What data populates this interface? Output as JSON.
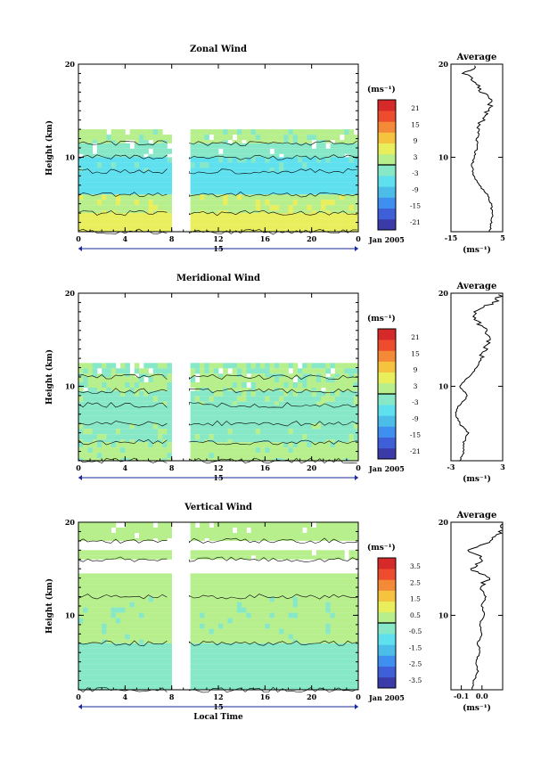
{
  "chart_data": [
    {
      "type": "heatmap",
      "title": "Zonal Wind",
      "ylabel": "Height (km)",
      "xlabel": "",
      "x_ticks": [
        "0",
        "4",
        "8",
        "12",
        "16",
        "20",
        "0"
      ],
      "y_ticks": [
        "20",
        "10"
      ],
      "date_label": "15",
      "month_label": "Jan 2005",
      "colorbar": {
        "unit": "(ms⁻¹)",
        "ticks": [
          "21",
          "15",
          "9",
          "3",
          "-3",
          "-9",
          "-15",
          "-21"
        ],
        "range": [
          -24,
          24
        ]
      },
      "xlim": [
        0,
        24
      ],
      "ylim": [
        2,
        20
      ],
      "data_gap": [
        8,
        9.5
      ],
      "layers": [
        {
          "y_from": 2,
          "y_to": 4,
          "value": 6
        },
        {
          "y_from": 4,
          "y_to": 6,
          "value": 3
        },
        {
          "y_from": 6,
          "y_to": 8.5,
          "value": -6
        },
        {
          "y_from": 8.5,
          "y_to": 10,
          "value": -5
        },
        {
          "y_from": 10,
          "y_to": 11.5,
          "value": -2
        },
        {
          "y_from": 11.5,
          "y_to": 13,
          "value": 1
        }
      ],
      "profile": {
        "title": "Average",
        "xlabel": "(ms⁻¹)",
        "x_ticks": [
          "-15",
          "5"
        ],
        "xlim": [
          -15,
          5
        ],
        "y_ticks": [
          "20",
          "10"
        ],
        "heights": [
          2,
          3,
          4,
          5,
          6,
          7,
          8,
          9,
          10,
          11,
          12,
          13,
          14,
          15,
          16,
          17,
          18,
          19,
          20
        ],
        "values": [
          0,
          0.5,
          1,
          0.5,
          -1,
          -4,
          -6,
          -7,
          -6,
          -5,
          -5,
          -4,
          -3,
          -1,
          1,
          -3,
          -5,
          -10,
          -4
        ]
      }
    },
    {
      "type": "heatmap",
      "title": "Meridional Wind",
      "ylabel": "Height (km)",
      "xlabel": "",
      "x_ticks": [
        "0",
        "4",
        "8",
        "12",
        "16",
        "20",
        "0"
      ],
      "y_ticks": [
        "20",
        "10"
      ],
      "date_label": "15",
      "month_label": "Jan 2005",
      "colorbar": {
        "unit": "(ms⁻¹)",
        "ticks": [
          "21",
          "15",
          "9",
          "3",
          "-3",
          "-9",
          "-15",
          "-21"
        ],
        "range": [
          -24,
          24
        ]
      },
      "xlim": [
        0,
        24
      ],
      "ylim": [
        2,
        20
      ],
      "data_gap": [
        8,
        9.5
      ],
      "layers": [
        {
          "y_from": 2,
          "y_to": 4,
          "value": 1
        },
        {
          "y_from": 4,
          "y_to": 6,
          "value": -1
        },
        {
          "y_from": 6,
          "y_to": 8,
          "value": -2
        },
        {
          "y_from": 8,
          "y_to": 9.5,
          "value": -1
        },
        {
          "y_from": 9.5,
          "y_to": 11,
          "value": 1
        },
        {
          "y_from": 11,
          "y_to": 12.5,
          "value": 0
        }
      ],
      "profile": {
        "title": "Average",
        "xlabel": "(ms⁻¹)",
        "x_ticks": [
          "-3",
          "3"
        ],
        "xlim": [
          -3,
          3
        ],
        "y_ticks": [
          "20",
          "10"
        ],
        "heights": [
          2,
          3,
          4,
          5,
          6,
          7,
          8,
          9,
          10,
          11,
          12,
          13,
          14,
          15,
          16,
          17,
          18,
          19,
          20
        ],
        "values": [
          -2,
          -1.5,
          -1.5,
          -1,
          -2,
          -2.5,
          -2,
          -1,
          -2,
          -1,
          0,
          0.5,
          1,
          1.5,
          1,
          0,
          -0.5,
          2,
          3
        ]
      }
    },
    {
      "type": "heatmap",
      "title": "Vertical Wind",
      "ylabel": "Height (km)",
      "xlabel": "Local Time",
      "x_ticks": [
        "0",
        "4",
        "8",
        "12",
        "16",
        "20",
        "0"
      ],
      "y_ticks": [
        "20",
        "10"
      ],
      "date_label": "15",
      "month_label": "Jan 2005",
      "colorbar": {
        "unit": "(ms⁻¹)",
        "ticks": [
          "3.5",
          "2.5",
          "1.5",
          "0.5",
          "-0.5",
          "-1.5",
          "-2.5",
          "-3.5"
        ],
        "range": [
          -4,
          4
        ]
      },
      "xlim": [
        0,
        24
      ],
      "ylim": [
        2,
        20
      ],
      "data_gap": [
        8,
        9.5
      ],
      "layers": [
        {
          "y_from": 2,
          "y_to": 7,
          "value": -0.4
        },
        {
          "y_from": 7,
          "y_to": 12,
          "value": 0.2
        },
        {
          "y_from": 12,
          "y_to": 14.5,
          "value": 0.3
        },
        {
          "y_from": 16,
          "y_to": 17,
          "value": 0.3
        },
        {
          "y_from": 18,
          "y_to": 20,
          "value": 0.4
        }
      ],
      "profile": {
        "title": "Average",
        "xlabel": "(ms⁻¹)",
        "x_ticks": [
          "-0.1",
          "0.0"
        ],
        "xlim": [
          -0.15,
          0.1
        ],
        "y_ticks": [
          "20",
          "10"
        ],
        "heights": [
          2,
          3,
          4,
          5,
          6,
          7,
          8,
          9,
          10,
          11,
          12,
          13,
          14,
          15,
          16,
          17,
          18,
          19,
          20
        ],
        "values": [
          -0.05,
          -0.04,
          -0.02,
          -0.03,
          -0.01,
          -0.02,
          0,
          -0.01,
          0.01,
          0,
          0.02,
          -0.01,
          0.03,
          -0.05,
          0.01,
          -0.06,
          0.05,
          0.09,
          0.11
        ]
      }
    }
  ]
}
